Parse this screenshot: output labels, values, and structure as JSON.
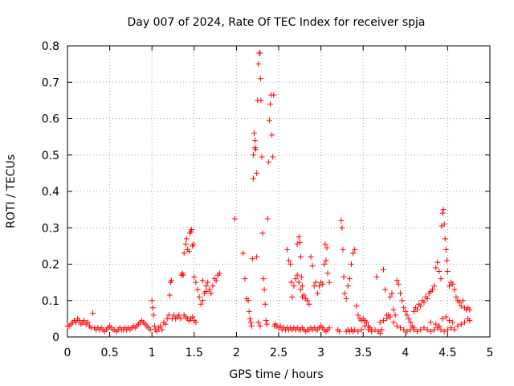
{
  "chart_data": {
    "type": "scatter",
    "title": "Day 007 of 2024, Rate Of TEC Index for receiver spja",
    "xlabel": "GPS time / hours",
    "ylabel": "ROTI / TECUs",
    "xlim": [
      0,
      5
    ],
    "ylim": [
      0,
      0.8
    ],
    "xticks": [
      "0",
      "0.5",
      "1",
      "1.5",
      "2",
      "2.5",
      "3",
      "3.5",
      "4",
      "4.5",
      "5"
    ],
    "yticks": [
      "0",
      "0.1",
      "0.2",
      "0.3",
      "0.4",
      "0.5",
      "0.6",
      "0.7",
      "0.8"
    ],
    "grid": true,
    "marker": "+",
    "color": "#ff0000",
    "points": [
      [
        0.0,
        0.03
      ],
      [
        0.02,
        0.03
      ],
      [
        0.04,
        0.035
      ],
      [
        0.06,
        0.04
      ],
      [
        0.08,
        0.045
      ],
      [
        0.1,
        0.04
      ],
      [
        0.12,
        0.05
      ],
      [
        0.14,
        0.045
      ],
      [
        0.16,
        0.035
      ],
      [
        0.18,
        0.04
      ],
      [
        0.2,
        0.045
      ],
      [
        0.22,
        0.035
      ],
      [
        0.24,
        0.04
      ],
      [
        0.26,
        0.03
      ],
      [
        0.28,
        0.025
      ],
      [
        0.3,
        0.065
      ],
      [
        0.32,
        0.025
      ],
      [
        0.34,
        0.02
      ],
      [
        0.36,
        0.025
      ],
      [
        0.38,
        0.02
      ],
      [
        0.4,
        0.025
      ],
      [
        0.42,
        0.02
      ],
      [
        0.44,
        0.015
      ],
      [
        0.46,
        0.02
      ],
      [
        0.48,
        0.025
      ],
      [
        0.5,
        0.03
      ],
      [
        0.52,
        0.025
      ],
      [
        0.54,
        0.02
      ],
      [
        0.56,
        0.02
      ],
      [
        0.58,
        0.015
      ],
      [
        0.6,
        0.02
      ],
      [
        0.62,
        0.025
      ],
      [
        0.64,
        0.02
      ],
      [
        0.66,
        0.02
      ],
      [
        0.68,
        0.025
      ],
      [
        0.7,
        0.02
      ],
      [
        0.72,
        0.025
      ],
      [
        0.74,
        0.02
      ],
      [
        0.76,
        0.025
      ],
      [
        0.78,
        0.03
      ],
      [
        0.8,
        0.025
      ],
      [
        0.82,
        0.03
      ],
      [
        0.84,
        0.035
      ],
      [
        0.86,
        0.04
      ],
      [
        0.88,
        0.045
      ],
      [
        0.9,
        0.04
      ],
      [
        0.92,
        0.035
      ],
      [
        0.94,
        0.03
      ],
      [
        0.96,
        0.025
      ],
      [
        0.98,
        0.02
      ],
      [
        1.0,
        0.1
      ],
      [
        1.01,
        0.08
      ],
      [
        1.02,
        0.06
      ],
      [
        1.03,
        0.03
      ],
      [
        1.04,
        0.02
      ],
      [
        1.06,
        0.015
      ],
      [
        1.08,
        0.025
      ],
      [
        1.1,
        0.03
      ],
      [
        1.12,
        0.02
      ],
      [
        1.14,
        0.04
      ],
      [
        1.16,
        0.035
      ],
      [
        1.18,
        0.05
      ],
      [
        1.2,
        0.06
      ],
      [
        1.21,
        0.115
      ],
      [
        1.22,
        0.15
      ],
      [
        1.23,
        0.155
      ],
      [
        1.24,
        0.05
      ],
      [
        1.26,
        0.06
      ],
      [
        1.28,
        0.05
      ],
      [
        1.3,
        0.055
      ],
      [
        1.32,
        0.06
      ],
      [
        1.34,
        0.05
      ],
      [
        1.35,
        0.17
      ],
      [
        1.36,
        0.175
      ],
      [
        1.37,
        0.17
      ],
      [
        1.38,
        0.06
      ],
      [
        1.4,
        0.055
      ],
      [
        1.42,
        0.05
      ],
      [
        1.44,
        0.045
      ],
      [
        1.46,
        0.05
      ],
      [
        1.48,
        0.055
      ],
      [
        1.5,
        0.045
      ],
      [
        1.52,
        0.04
      ],
      [
        1.38,
        0.23
      ],
      [
        1.4,
        0.255
      ],
      [
        1.41,
        0.27
      ],
      [
        1.42,
        0.24
      ],
      [
        1.44,
        0.235
      ],
      [
        1.45,
        0.285
      ],
      [
        1.46,
        0.29
      ],
      [
        1.47,
        0.295
      ],
      [
        1.48,
        0.25
      ],
      [
        1.49,
        0.255
      ],
      [
        1.5,
        0.165
      ],
      [
        1.52,
        0.15
      ],
      [
        1.54,
        0.13
      ],
      [
        1.56,
        0.11
      ],
      [
        1.58,
        0.09
      ],
      [
        1.6,
        0.1
      ],
      [
        1.62,
        0.12
      ],
      [
        1.64,
        0.14
      ],
      [
        1.66,
        0.15
      ],
      [
        1.68,
        0.13
      ],
      [
        1.7,
        0.12
      ],
      [
        1.72,
        0.14
      ],
      [
        1.74,
        0.16
      ],
      [
        1.76,
        0.155
      ],
      [
        1.78,
        0.17
      ],
      [
        1.8,
        0.175
      ],
      [
        1.6,
        0.155
      ],
      [
        1.64,
        0.125
      ],
      [
        1.98,
        0.325
      ],
      [
        2.08,
        0.23
      ],
      [
        2.1,
        0.16
      ],
      [
        2.12,
        0.105
      ],
      [
        2.14,
        0.1
      ],
      [
        2.15,
        0.07
      ],
      [
        2.16,
        0.05
      ],
      [
        2.17,
        0.04
      ],
      [
        2.18,
        0.03
      ],
      [
        2.19,
        0.215
      ],
      [
        2.2,
        0.435
      ],
      [
        2.21,
        0.56
      ],
      [
        2.22,
        0.52
      ],
      [
        2.23,
        0.515
      ],
      [
        2.24,
        0.45
      ],
      [
        2.25,
        0.65
      ],
      [
        2.26,
        0.75
      ],
      [
        2.27,
        0.78
      ],
      [
        2.28,
        0.78
      ],
      [
        2.285,
        0.71
      ],
      [
        2.29,
        0.65
      ],
      [
        2.3,
        0.495
      ],
      [
        2.31,
        0.285
      ],
      [
        2.32,
        0.16
      ],
      [
        2.33,
        0.13
      ],
      [
        2.34,
        0.09
      ],
      [
        2.35,
        0.045
      ],
      [
        2.36,
        0.035
      ],
      [
        2.37,
        0.325
      ],
      [
        2.38,
        0.48
      ],
      [
        2.39,
        0.595
      ],
      [
        2.4,
        0.64
      ],
      [
        2.41,
        0.665
      ],
      [
        2.42,
        0.555
      ],
      [
        2.43,
        0.495
      ],
      [
        2.44,
        0.665
      ],
      [
        2.45,
        0.03
      ],
      [
        2.2,
        0.5
      ],
      [
        2.22,
        0.54
      ],
      [
        2.24,
        0.22
      ],
      [
        2.26,
        0.04
      ],
      [
        2.28,
        0.03
      ],
      [
        2.46,
        0.035
      ],
      [
        2.48,
        0.03
      ],
      [
        2.5,
        0.025
      ],
      [
        2.52,
        0.03
      ],
      [
        2.54,
        0.02
      ],
      [
        2.56,
        0.025
      ],
      [
        2.58,
        0.02
      ],
      [
        2.6,
        0.025
      ],
      [
        2.62,
        0.02
      ],
      [
        2.64,
        0.025
      ],
      [
        2.66,
        0.02
      ],
      [
        2.68,
        0.025
      ],
      [
        2.7,
        0.02
      ],
      [
        2.72,
        0.025
      ],
      [
        2.74,
        0.02
      ],
      [
        2.76,
        0.02
      ],
      [
        2.78,
        0.025
      ],
      [
        2.8,
        0.02
      ],
      [
        2.82,
        0.015
      ],
      [
        2.84,
        0.02
      ],
      [
        2.86,
        0.02
      ],
      [
        2.88,
        0.025
      ],
      [
        2.9,
        0.02
      ],
      [
        2.92,
        0.025
      ],
      [
        2.94,
        0.02
      ],
      [
        2.96,
        0.02
      ],
      [
        2.98,
        0.025
      ],
      [
        3.0,
        0.03
      ],
      [
        3.02,
        0.025
      ],
      [
        3.04,
        0.02
      ],
      [
        3.06,
        0.015
      ],
      [
        3.08,
        0.02
      ],
      [
        3.1,
        0.025
      ],
      [
        2.6,
        0.24
      ],
      [
        2.62,
        0.21
      ],
      [
        2.64,
        0.2
      ],
      [
        2.65,
        0.15
      ],
      [
        2.66,
        0.11
      ],
      [
        2.68,
        0.14
      ],
      [
        2.7,
        0.16
      ],
      [
        2.72,
        0.255
      ],
      [
        2.74,
        0.275
      ],
      [
        2.75,
        0.26
      ],
      [
        2.76,
        0.22
      ],
      [
        2.77,
        0.165
      ],
      [
        2.78,
        0.14
      ],
      [
        2.8,
        0.115
      ],
      [
        2.82,
        0.105
      ],
      [
        2.84,
        0.1
      ],
      [
        2.86,
        0.09
      ],
      [
        2.88,
        0.22
      ],
      [
        2.9,
        0.195
      ],
      [
        2.92,
        0.14
      ],
      [
        2.94,
        0.15
      ],
      [
        2.96,
        0.12
      ],
      [
        2.98,
        0.14
      ],
      [
        3.0,
        0.15
      ],
      [
        3.02,
        0.145
      ],
      [
        3.04,
        0.2
      ],
      [
        3.05,
        0.255
      ],
      [
        3.06,
        0.21
      ],
      [
        3.07,
        0.245
      ],
      [
        3.08,
        0.175
      ],
      [
        3.1,
        0.15
      ],
      [
        2.72,
        0.17
      ],
      [
        2.74,
        0.15
      ],
      [
        2.76,
        0.13
      ],
      [
        2.78,
        0.11
      ],
      [
        3.2,
        0.02
      ],
      [
        3.22,
        0.015
      ],
      [
        3.24,
        0.32
      ],
      [
        3.25,
        0.3
      ],
      [
        3.26,
        0.24
      ],
      [
        3.27,
        0.165
      ],
      [
        3.28,
        0.12
      ],
      [
        3.3,
        0.105
      ],
      [
        3.32,
        0.14
      ],
      [
        3.34,
        0.16
      ],
      [
        3.36,
        0.2
      ],
      [
        3.38,
        0.23
      ],
      [
        3.4,
        0.24
      ],
      [
        3.42,
        0.085
      ],
      [
        3.44,
        0.06
      ],
      [
        3.46,
        0.05
      ],
      [
        3.48,
        0.045
      ],
      [
        3.5,
        0.05
      ],
      [
        3.52,
        0.045
      ],
      [
        3.54,
        0.04
      ],
      [
        3.56,
        0.03
      ],
      [
        3.58,
        0.025
      ],
      [
        3.6,
        0.02
      ],
      [
        3.3,
        0.015
      ],
      [
        3.32,
        0.02
      ],
      [
        3.34,
        0.015
      ],
      [
        3.36,
        0.02
      ],
      [
        3.38,
        0.015
      ],
      [
        3.4,
        0.02
      ],
      [
        3.44,
        0.015
      ],
      [
        3.48,
        0.02
      ],
      [
        3.52,
        0.03
      ],
      [
        3.56,
        0.02
      ],
      [
        3.6,
        0.015
      ],
      [
        3.64,
        0.02
      ],
      [
        3.68,
        0.015
      ],
      [
        3.72,
        0.02
      ],
      [
        3.66,
        0.165
      ],
      [
        3.7,
        0.01
      ],
      [
        3.74,
        0.185
      ],
      [
        3.76,
        0.13
      ],
      [
        3.78,
        0.05
      ],
      [
        3.8,
        0.06
      ],
      [
        3.82,
        0.11
      ],
      [
        3.84,
        0.12
      ],
      [
        3.86,
        0.075
      ],
      [
        3.88,
        0.06
      ],
      [
        3.9,
        0.155
      ],
      [
        3.92,
        0.145
      ],
      [
        3.94,
        0.12
      ],
      [
        3.96,
        0.1
      ],
      [
        3.98,
        0.08
      ],
      [
        4.0,
        0.07
      ],
      [
        4.02,
        0.06
      ],
      [
        4.04,
        0.05
      ],
      [
        4.06,
        0.04
      ],
      [
        4.08,
        0.03
      ],
      [
        3.7,
        0.04
      ],
      [
        3.74,
        0.045
      ],
      [
        3.78,
        0.06
      ],
      [
        3.82,
        0.055
      ],
      [
        3.86,
        0.04
      ],
      [
        3.9,
        0.03
      ],
      [
        3.94,
        0.025
      ],
      [
        3.98,
        0.02
      ],
      [
        4.02,
        0.015
      ],
      [
        4.06,
        0.02
      ],
      [
        4.1,
        0.025
      ],
      [
        4.1,
        0.07
      ],
      [
        4.12,
        0.08
      ],
      [
        4.14,
        0.075
      ],
      [
        4.16,
        0.09
      ],
      [
        4.18,
        0.085
      ],
      [
        4.2,
        0.1
      ],
      [
        4.22,
        0.095
      ],
      [
        4.24,
        0.11
      ],
      [
        4.26,
        0.105
      ],
      [
        4.28,
        0.12
      ],
      [
        4.3,
        0.125
      ],
      [
        4.32,
        0.13
      ],
      [
        4.34,
        0.14
      ],
      [
        4.36,
        0.19
      ],
      [
        4.38,
        0.205
      ],
      [
        4.4,
        0.18
      ],
      [
        4.42,
        0.16
      ],
      [
        4.43,
        0.305
      ],
      [
        4.44,
        0.34
      ],
      [
        4.45,
        0.35
      ],
      [
        4.46,
        0.31
      ],
      [
        4.47,
        0.27
      ],
      [
        4.48,
        0.24
      ],
      [
        4.49,
        0.21
      ],
      [
        4.5,
        0.18
      ],
      [
        4.52,
        0.14
      ],
      [
        4.54,
        0.15
      ],
      [
        4.56,
        0.145
      ],
      [
        4.58,
        0.13
      ],
      [
        4.6,
        0.11
      ],
      [
        4.62,
        0.1
      ],
      [
        4.64,
        0.095
      ],
      [
        4.66,
        0.085
      ],
      [
        4.68,
        0.1
      ],
      [
        4.7,
        0.08
      ],
      [
        4.72,
        0.075
      ],
      [
        4.74,
        0.08
      ],
      [
        4.76,
        0.075
      ],
      [
        4.1,
        0.02
      ],
      [
        4.14,
        0.015
      ],
      [
        4.18,
        0.02
      ],
      [
        4.22,
        0.025
      ],
      [
        4.26,
        0.02
      ],
      [
        4.3,
        0.015
      ],
      [
        4.34,
        0.02
      ],
      [
        4.38,
        0.025
      ],
      [
        4.42,
        0.02
      ],
      [
        4.46,
        0.015
      ],
      [
        4.5,
        0.02
      ],
      [
        4.54,
        0.025
      ],
      [
        4.58,
        0.02
      ],
      [
        4.62,
        0.03
      ],
      [
        4.66,
        0.035
      ],
      [
        4.7,
        0.04
      ],
      [
        4.74,
        0.05
      ],
      [
        4.76,
        0.045
      ],
      [
        4.3,
        0.04
      ],
      [
        4.36,
        0.035
      ],
      [
        4.4,
        0.03
      ],
      [
        4.44,
        0.05
      ],
      [
        4.48,
        0.055
      ],
      [
        4.52,
        0.045
      ],
      [
        4.56,
        0.04
      ]
    ]
  }
}
